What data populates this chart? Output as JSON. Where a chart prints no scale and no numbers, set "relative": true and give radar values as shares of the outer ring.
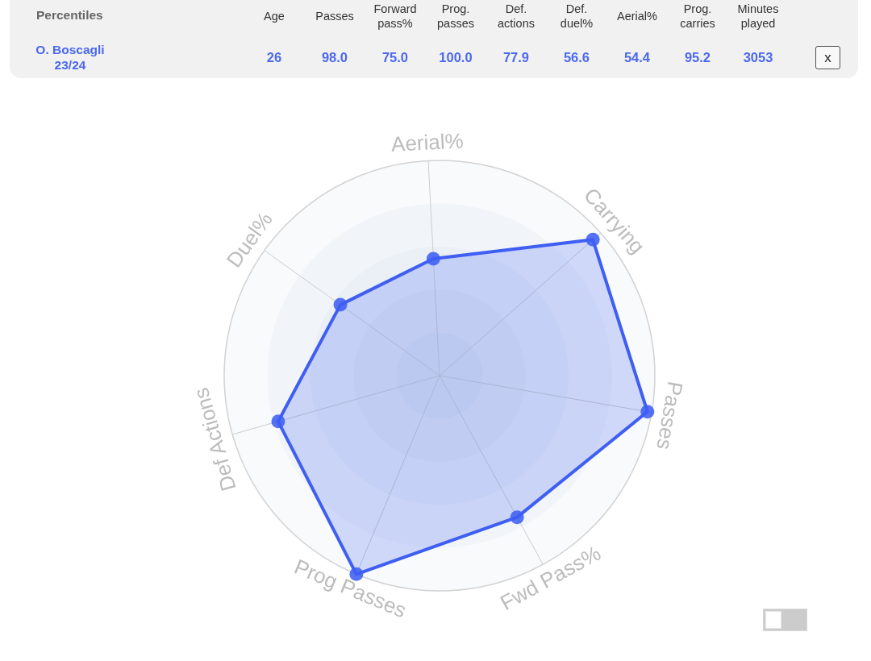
{
  "chart_data": [
    {
      "type": "other",
      "title": "Percentiles",
      "categories": [
        "Age",
        "Passes",
        "Forward pass%",
        "Prog. passes",
        "Def. actions",
        "Def. duel%",
        "Aerial%",
        "Prog. carries",
        "Minutes played"
      ],
      "series": [
        {
          "name": "O. Boscagli 23/24",
          "values": [
            26,
            98.0,
            75.0,
            100.0,
            77.9,
            56.6,
            54.4,
            95.2,
            3053
          ],
          "value_labels": [
            "26",
            "98.0",
            "75.0",
            "100.0",
            "77.9",
            "56.6",
            "54.4",
            "95.2",
            "3053"
          ]
        }
      ],
      "annotations": [
        "x"
      ]
    },
    {
      "type": "radar",
      "categories": [
        "Aerial%",
        "Carrying",
        "Passes",
        "Fwd Pass%",
        "Prog Passes",
        "Def Actions",
        "Duel%"
      ],
      "relative": true,
      "series": [
        {
          "color": "#3f5ef2",
          "values": [
            0.544,
            0.952,
            0.98,
            0.75,
            1,
            0.779,
            0.566
          ]
        }
      ],
      "grid": true,
      "marker": "circle"
    }
  ]
}
